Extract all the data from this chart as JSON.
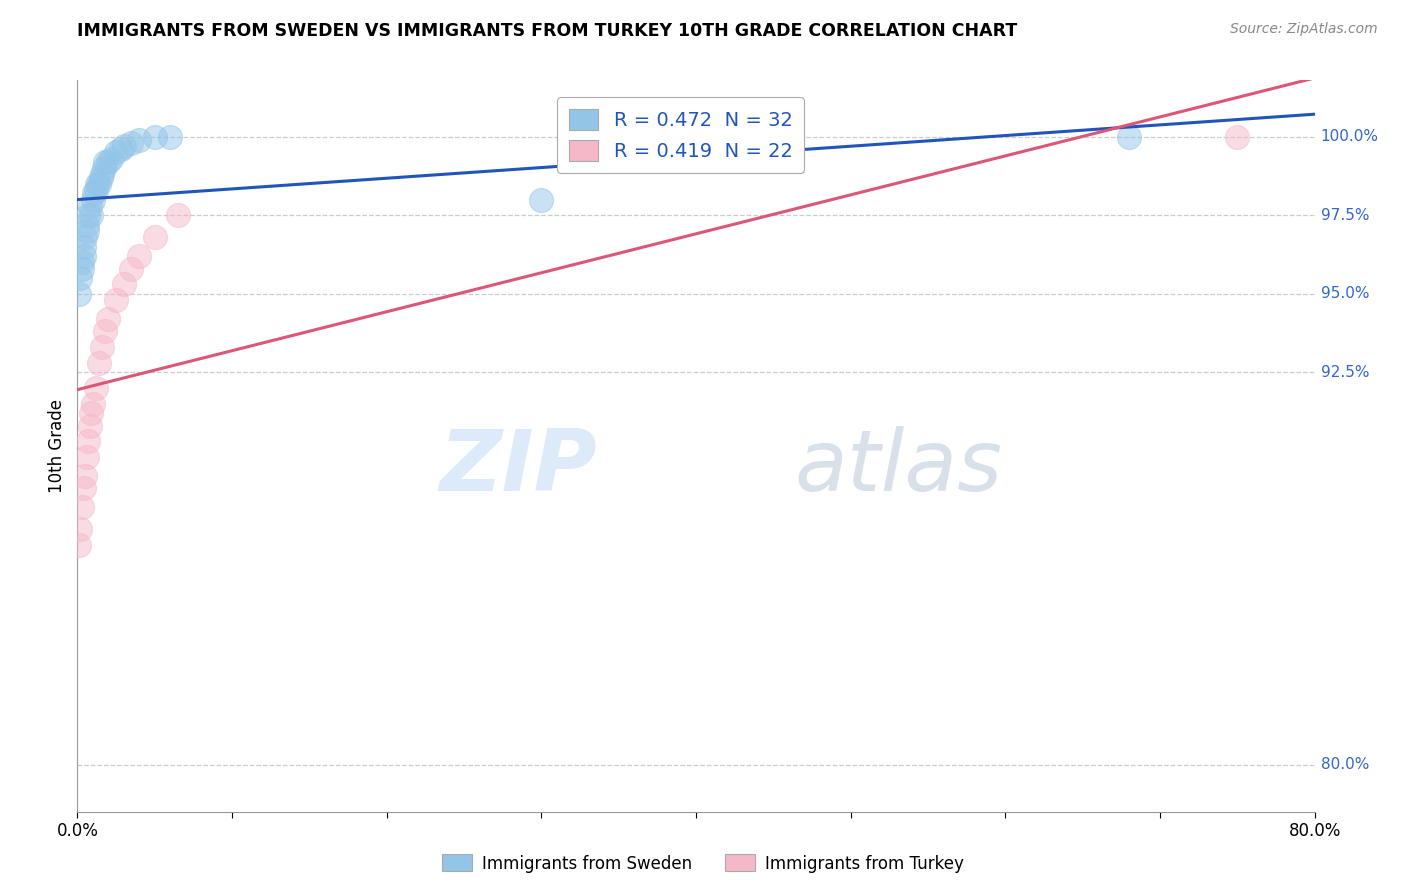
{
  "title": "IMMIGRANTS FROM SWEDEN VS IMMIGRANTS FROM TURKEY 10TH GRADE CORRELATION CHART",
  "source": "Source: ZipAtlas.com",
  "ylabel": "10th Grade",
  "ylabel_right_ticks": [
    "80.0%",
    "92.5%",
    "95.0%",
    "97.5%",
    "100.0%"
  ],
  "ylabel_right_vals": [
    0.8,
    0.925,
    0.95,
    0.975,
    1.0
  ],
  "xmin": 0.0,
  "xmax": 0.8,
  "ymin": 0.785,
  "ymax": 1.018,
  "watermark_zip": "ZIP",
  "watermark_atlas": "atlas",
  "legend_r1": "R = 0.472  N = 32",
  "legend_r2": "R = 0.419  N = 22",
  "blue_color": "#92C5E8",
  "pink_color": "#F5B8C8",
  "trend_blue": "#2255BB",
  "trend_pink": "#DD5577",
  "sweden_label": "Immigrants from Sweden",
  "turkey_label": "Immigrants from Turkey",
  "sweden_x": [
    0.001,
    0.002,
    0.003,
    0.003,
    0.004,
    0.004,
    0.005,
    0.006,
    0.006,
    0.007,
    0.008,
    0.009,
    0.01,
    0.011,
    0.012,
    0.013,
    0.014,
    0.015,
    0.016,
    0.017,
    0.018,
    0.02,
    0.022,
    0.025,
    0.028,
    0.03,
    0.035,
    0.04,
    0.05,
    0.06,
    0.3,
    0.68
  ],
  "sweden_y": [
    0.95,
    0.955,
    0.96,
    0.958,
    0.962,
    0.965,
    0.968,
    0.972,
    0.97,
    0.975,
    0.978,
    0.975,
    0.98,
    0.982,
    0.983,
    0.985,
    0.985,
    0.987,
    0.988,
    0.99,
    0.992,
    0.992,
    0.993,
    0.995,
    0.996,
    0.997,
    0.998,
    0.999,
    1.0,
    1.0,
    0.98,
    1.0
  ],
  "turkey_x": [
    0.001,
    0.002,
    0.003,
    0.004,
    0.005,
    0.006,
    0.007,
    0.008,
    0.009,
    0.01,
    0.012,
    0.014,
    0.016,
    0.018,
    0.02,
    0.025,
    0.03,
    0.035,
    0.04,
    0.05,
    0.065,
    0.75
  ],
  "turkey_y": [
    0.87,
    0.875,
    0.882,
    0.888,
    0.892,
    0.898,
    0.903,
    0.908,
    0.912,
    0.915,
    0.92,
    0.928,
    0.933,
    0.938,
    0.942,
    0.948,
    0.953,
    0.958,
    0.962,
    0.968,
    0.975,
    1.0
  ],
  "grid_color": "#CCCCCC",
  "grid_style": "--",
  "tick_color": "#3366CC"
}
